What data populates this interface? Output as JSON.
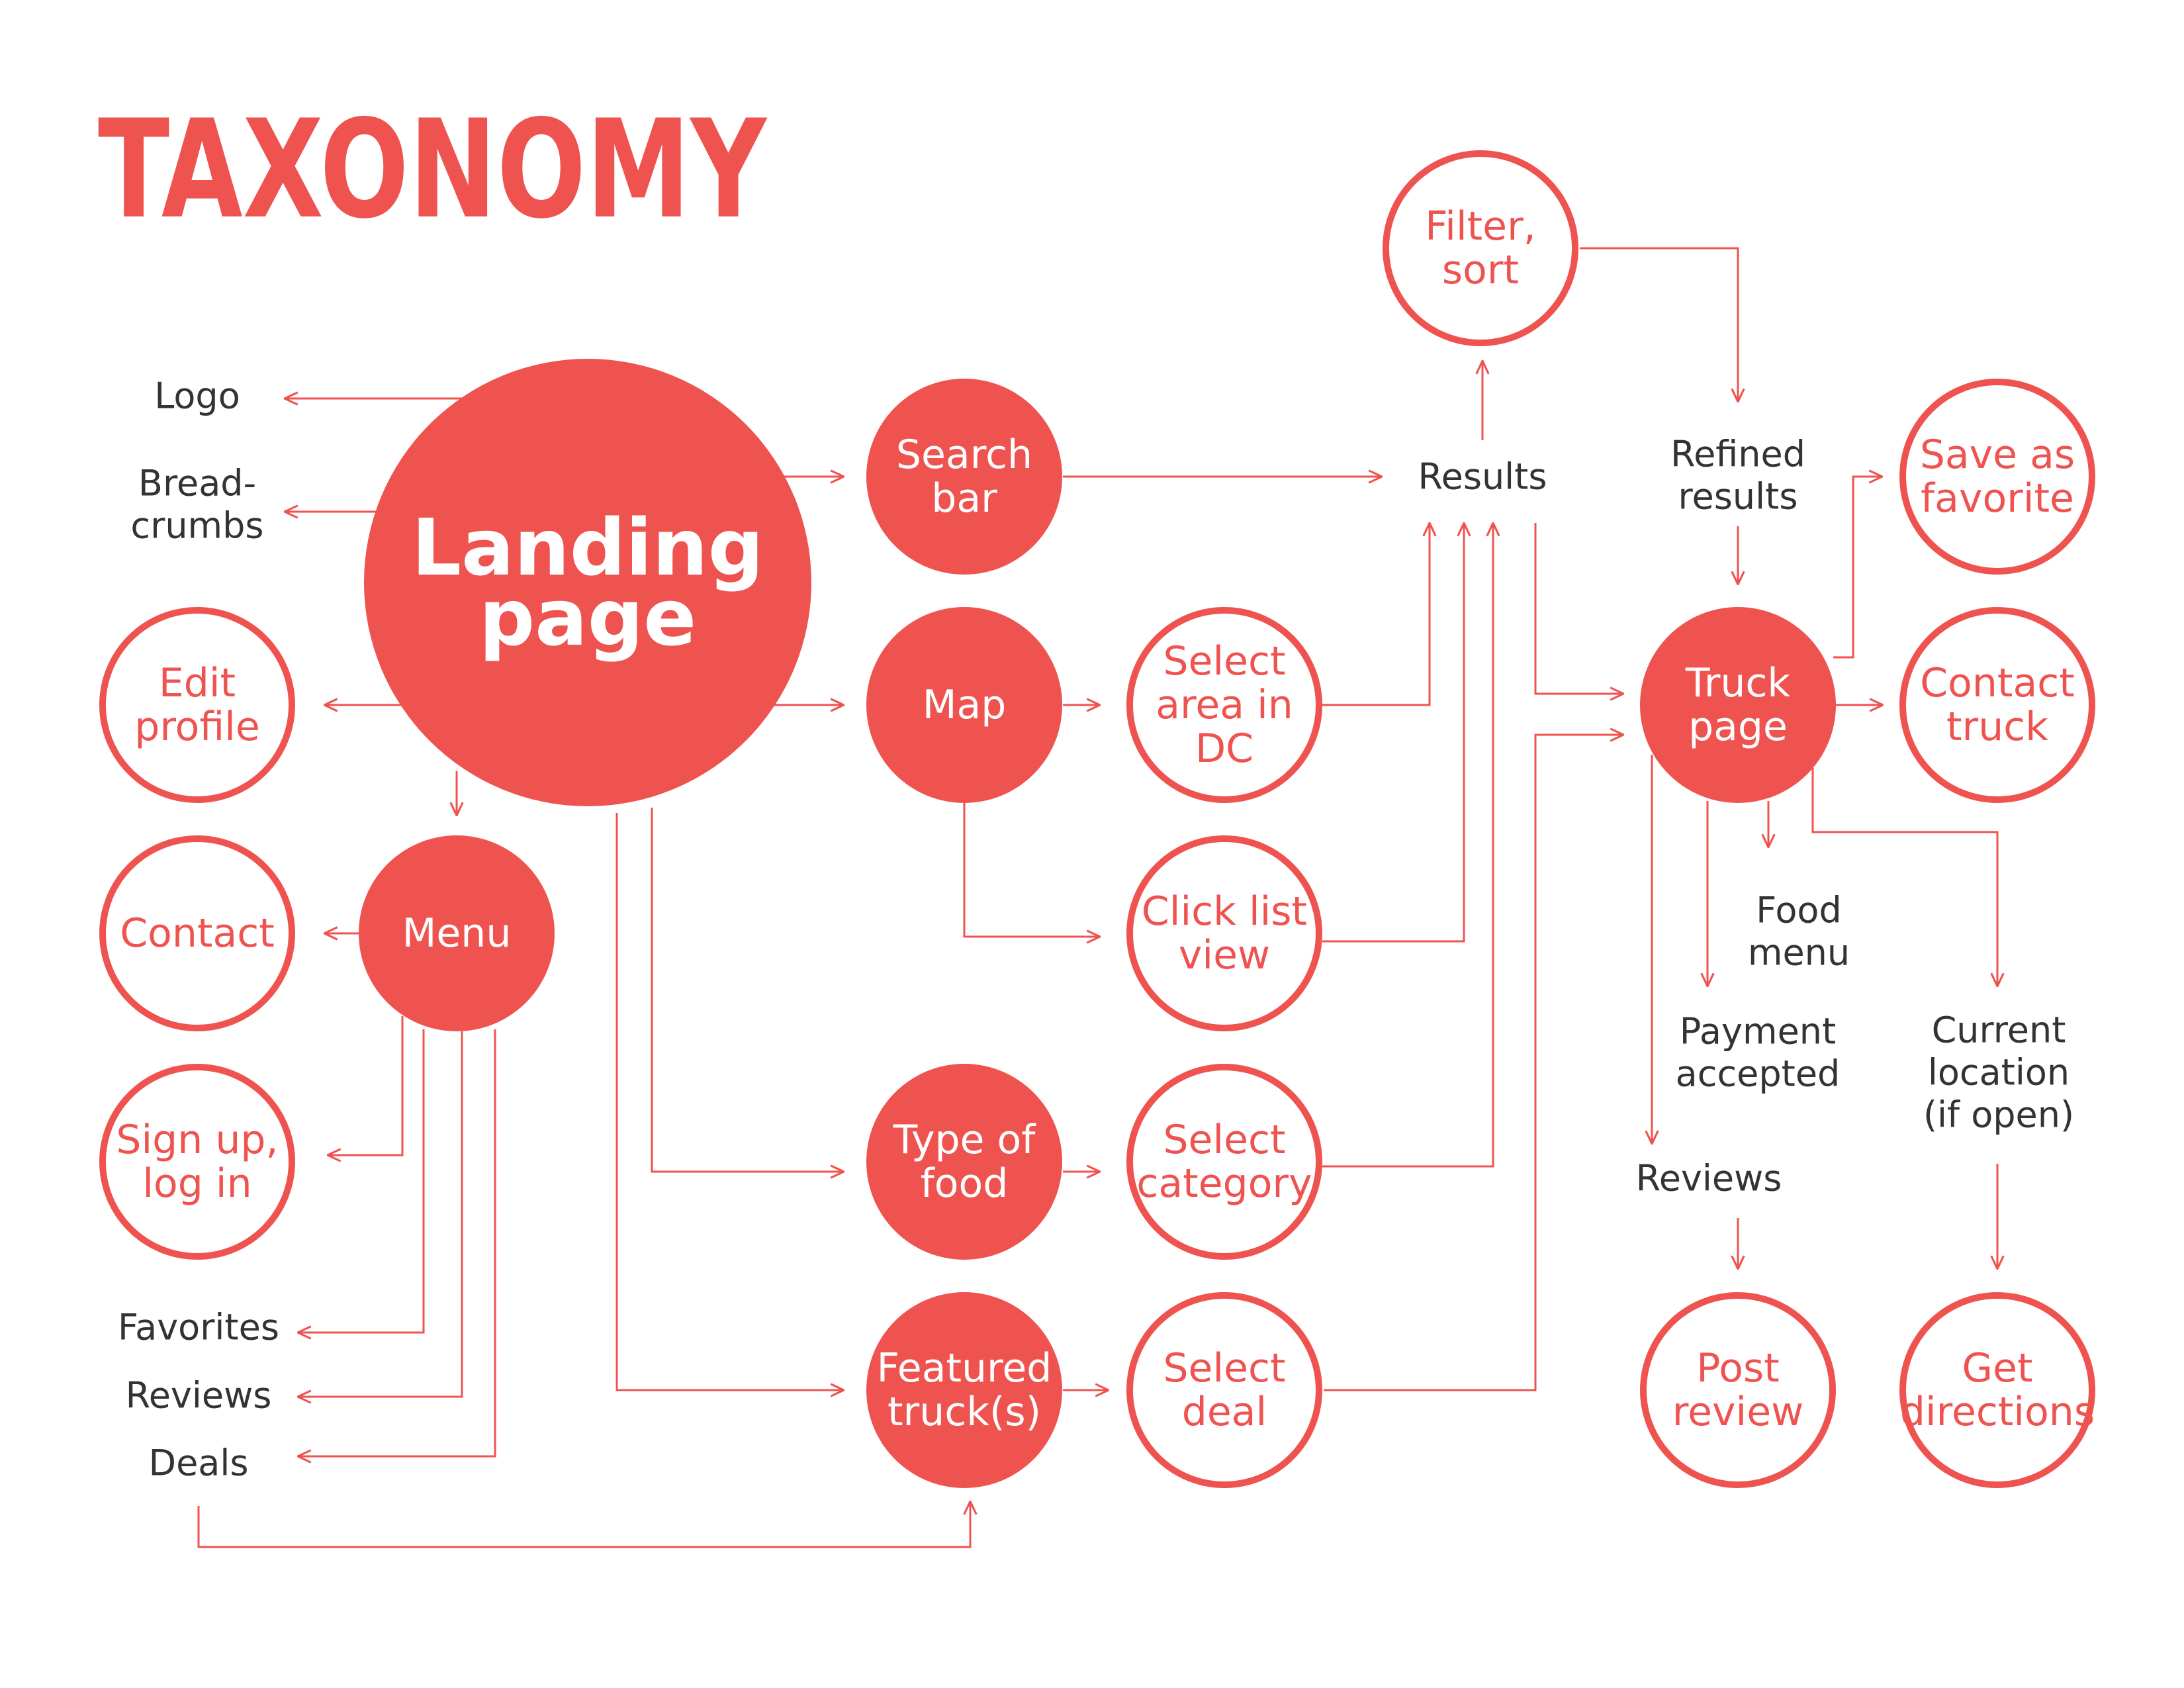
{
  "title": "TAXONOMY",
  "colors": {
    "accent": "#ef5350",
    "on_accent": "#ffffff",
    "text": "#333333",
    "background": "#ffffff"
  },
  "nodes": [
    {
      "id": "landing",
      "style": "hero",
      "lines": [
        "Landing",
        "page"
      ]
    },
    {
      "id": "search",
      "style": "filled",
      "lines": [
        "Search",
        "bar"
      ]
    },
    {
      "id": "map",
      "style": "filled",
      "lines": [
        "Map"
      ]
    },
    {
      "id": "menu",
      "style": "filled",
      "lines": [
        "Menu"
      ]
    },
    {
      "id": "typefood",
      "style": "filled",
      "lines": [
        "Type of",
        "food"
      ]
    },
    {
      "id": "featured",
      "style": "filled",
      "lines": [
        "Featured",
        "truck(s)"
      ]
    },
    {
      "id": "truck",
      "style": "filled",
      "lines": [
        "Truck",
        "page"
      ]
    },
    {
      "id": "filter",
      "style": "outline",
      "lines": [
        "Filter,",
        "sort"
      ]
    },
    {
      "id": "editprofile",
      "style": "outline",
      "lines": [
        "Edit",
        "profile"
      ]
    },
    {
      "id": "contact",
      "style": "outline",
      "lines": [
        "Contact"
      ]
    },
    {
      "id": "signup",
      "style": "outline",
      "lines": [
        "Sign up,",
        "log in"
      ]
    },
    {
      "id": "selectarea",
      "style": "outline",
      "lines": [
        "Select",
        "area in",
        "DC"
      ]
    },
    {
      "id": "clicklist",
      "style": "outline",
      "lines": [
        "Click list",
        "view"
      ]
    },
    {
      "id": "selectcat",
      "style": "outline",
      "lines": [
        "Select",
        "category"
      ]
    },
    {
      "id": "selectdeal",
      "style": "outline",
      "lines": [
        "Select",
        "deal"
      ]
    },
    {
      "id": "savefav",
      "style": "outline",
      "lines": [
        "Save as",
        "favorite"
      ]
    },
    {
      "id": "contacttruck",
      "style": "outline",
      "lines": [
        "Contact",
        "truck"
      ]
    },
    {
      "id": "postreview",
      "style": "outline",
      "lines": [
        "Post",
        "review"
      ]
    },
    {
      "id": "getdirections",
      "style": "outline",
      "lines": [
        "Get",
        "directions"
      ]
    },
    {
      "id": "logo",
      "style": "text",
      "lines": [
        "Logo"
      ]
    },
    {
      "id": "breadcrumbs",
      "style": "text",
      "lines": [
        "Bread-",
        "crumbs"
      ]
    },
    {
      "id": "favorites",
      "style": "text",
      "lines": [
        "Favorites"
      ]
    },
    {
      "id": "reviews-menu",
      "style": "text",
      "lines": [
        "Reviews"
      ]
    },
    {
      "id": "deals",
      "style": "text",
      "lines": [
        "Deals"
      ]
    },
    {
      "id": "results",
      "style": "text",
      "lines": [
        "Results"
      ]
    },
    {
      "id": "refined",
      "style": "text",
      "lines": [
        "Refined",
        "results"
      ]
    },
    {
      "id": "foodmenu",
      "style": "text",
      "lines": [
        "Food",
        "menu"
      ]
    },
    {
      "id": "payment",
      "style": "text",
      "lines": [
        "Payment",
        "accepted"
      ]
    },
    {
      "id": "currentloc",
      "style": "text",
      "lines": [
        "Current",
        "location",
        "(if open)"
      ]
    },
    {
      "id": "reviews-truck",
      "style": "text",
      "lines": [
        "Reviews"
      ]
    }
  ],
  "edges": [
    {
      "from": "landing",
      "to": "logo"
    },
    {
      "from": "landing",
      "to": "breadcrumbs"
    },
    {
      "from": "landing",
      "to": "editprofile"
    },
    {
      "from": "landing",
      "to": "menu"
    },
    {
      "from": "landing",
      "to": "search"
    },
    {
      "from": "landing",
      "to": "map"
    },
    {
      "from": "landing",
      "to": "typefood"
    },
    {
      "from": "landing",
      "to": "featured"
    },
    {
      "from": "menu",
      "to": "contact"
    },
    {
      "from": "menu",
      "to": "signup"
    },
    {
      "from": "menu",
      "to": "favorites"
    },
    {
      "from": "menu",
      "to": "reviews-menu"
    },
    {
      "from": "menu",
      "to": "deals"
    },
    {
      "from": "deals",
      "to": "featured"
    },
    {
      "from": "search",
      "to": "results"
    },
    {
      "from": "map",
      "to": "selectarea"
    },
    {
      "from": "map",
      "to": "clicklist"
    },
    {
      "from": "typefood",
      "to": "selectcat"
    },
    {
      "from": "featured",
      "to": "selectdeal"
    },
    {
      "from": "selectarea",
      "to": "results"
    },
    {
      "from": "clicklist",
      "to": "results"
    },
    {
      "from": "selectcat",
      "to": "results"
    },
    {
      "from": "results",
      "to": "filter"
    },
    {
      "from": "filter",
      "to": "refined"
    },
    {
      "from": "refined",
      "to": "truck"
    },
    {
      "from": "results",
      "to": "truck"
    },
    {
      "from": "selectdeal",
      "to": "truck"
    },
    {
      "from": "truck",
      "to": "savefav"
    },
    {
      "from": "truck",
      "to": "contacttruck"
    },
    {
      "from": "truck",
      "to": "foodmenu"
    },
    {
      "from": "truck",
      "to": "payment"
    },
    {
      "from": "truck",
      "to": "currentloc"
    },
    {
      "from": "truck",
      "to": "reviews-truck"
    },
    {
      "from": "reviews-truck",
      "to": "postreview"
    },
    {
      "from": "currentloc",
      "to": "getdirections"
    }
  ]
}
